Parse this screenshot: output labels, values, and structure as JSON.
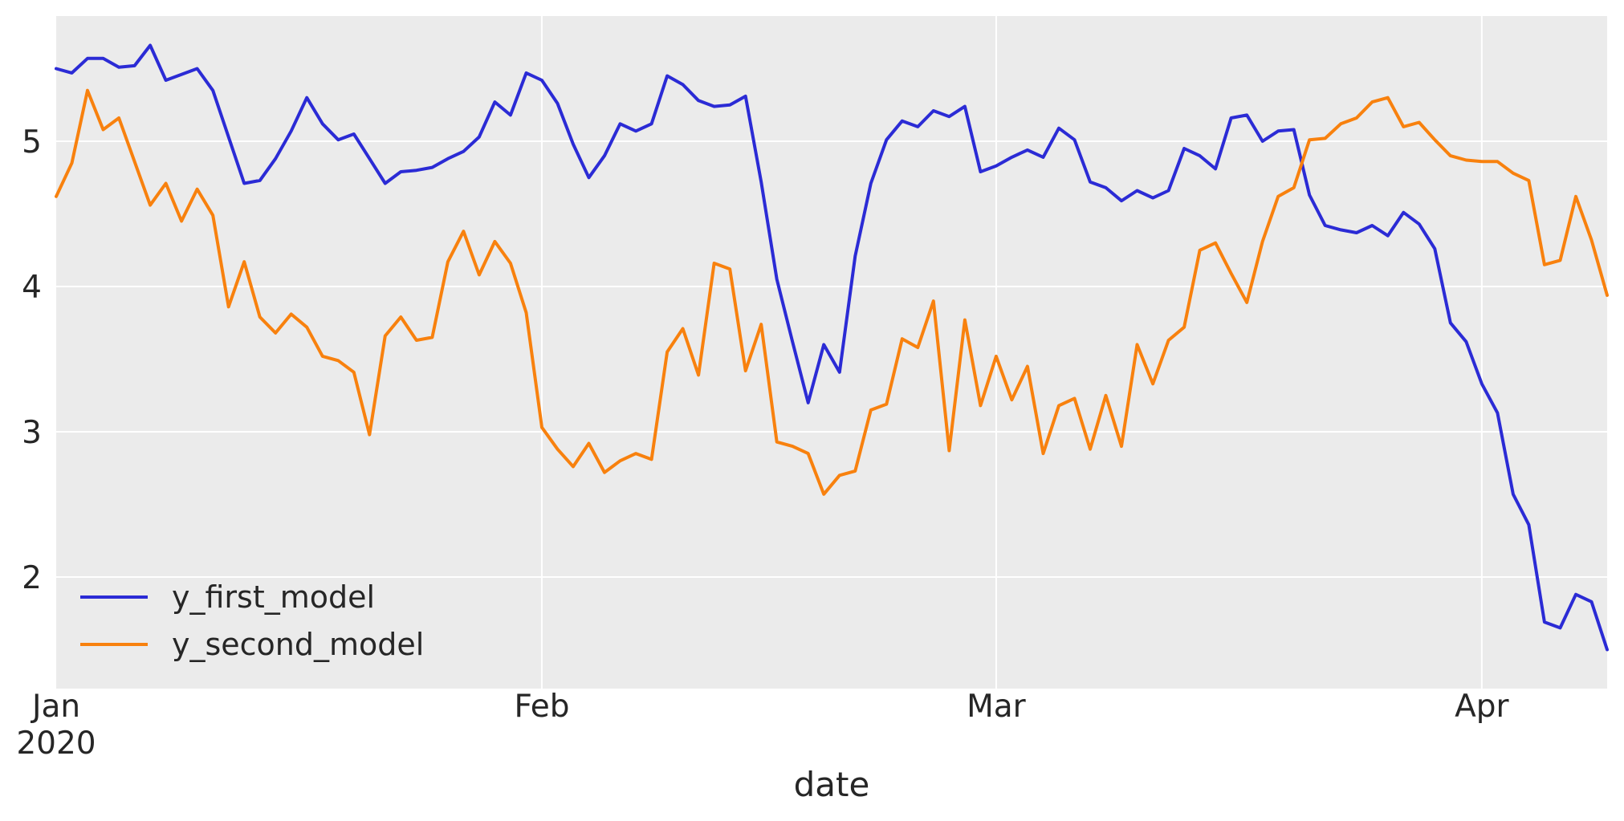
{
  "chart_data": {
    "type": "line",
    "title": "",
    "xlabel": "date",
    "ylabel": "",
    "grid": true,
    "legend_position": "lower left",
    "ylim": [
      1.23,
      5.86
    ],
    "xlim": [
      "2020-01-01",
      "2020-04-09"
    ],
    "y_ticks": [
      2,
      3,
      4,
      5
    ],
    "x_ticks": [
      {
        "index": 0,
        "label": "Jan",
        "sublabel": "2020"
      },
      {
        "index": 31,
        "label": "Feb",
        "sublabel": ""
      },
      {
        "index": 60,
        "label": "Mar",
        "sublabel": ""
      },
      {
        "index": 91,
        "label": "Apr",
        "sublabel": ""
      }
    ],
    "colors": {
      "first_model": "#2b2bd5",
      "second_model": "#f8810e",
      "plot_background": "#ebebeb",
      "figure_background": "#ffffff",
      "gridline": "#ffffff",
      "text": "#262626"
    },
    "x": [
      "2020-01-01",
      "2020-01-02",
      "2020-01-03",
      "2020-01-04",
      "2020-01-05",
      "2020-01-06",
      "2020-01-07",
      "2020-01-08",
      "2020-01-09",
      "2020-01-10",
      "2020-01-11",
      "2020-01-12",
      "2020-01-13",
      "2020-01-14",
      "2020-01-15",
      "2020-01-16",
      "2020-01-17",
      "2020-01-18",
      "2020-01-19",
      "2020-01-20",
      "2020-01-21",
      "2020-01-22",
      "2020-01-23",
      "2020-01-24",
      "2020-01-25",
      "2020-01-26",
      "2020-01-27",
      "2020-01-28",
      "2020-01-29",
      "2020-01-30",
      "2020-01-31",
      "2020-02-01",
      "2020-02-02",
      "2020-02-03",
      "2020-02-04",
      "2020-02-05",
      "2020-02-06",
      "2020-02-07",
      "2020-02-08",
      "2020-02-09",
      "2020-02-10",
      "2020-02-11",
      "2020-02-12",
      "2020-02-13",
      "2020-02-14",
      "2020-02-15",
      "2020-02-16",
      "2020-02-17",
      "2020-02-18",
      "2020-02-19",
      "2020-02-20",
      "2020-02-21",
      "2020-02-22",
      "2020-02-23",
      "2020-02-24",
      "2020-02-25",
      "2020-02-26",
      "2020-02-27",
      "2020-02-28",
      "2020-02-29",
      "2020-03-01",
      "2020-03-02",
      "2020-03-03",
      "2020-03-04",
      "2020-03-05",
      "2020-03-06",
      "2020-03-07",
      "2020-03-08",
      "2020-03-09",
      "2020-03-10",
      "2020-03-11",
      "2020-03-12",
      "2020-03-13",
      "2020-03-14",
      "2020-03-15",
      "2020-03-16",
      "2020-03-17",
      "2020-03-18",
      "2020-03-19",
      "2020-03-20",
      "2020-03-21",
      "2020-03-22",
      "2020-03-23",
      "2020-03-24",
      "2020-03-25",
      "2020-03-26",
      "2020-03-27",
      "2020-03-28",
      "2020-03-29",
      "2020-03-30",
      "2020-03-31",
      "2020-04-01",
      "2020-04-02",
      "2020-04-03",
      "2020-04-04",
      "2020-04-05",
      "2020-04-06",
      "2020-04-07",
      "2020-04-08",
      "2020-04-09"
    ],
    "series": [
      {
        "name": "y_first_model",
        "color": "#2b2bd5",
        "values": [
          5.5,
          5.47,
          5.57,
          5.57,
          5.51,
          5.52,
          5.66,
          5.42,
          5.46,
          5.5,
          5.35,
          5.03,
          4.71,
          4.73,
          4.88,
          5.07,
          5.3,
          5.12,
          5.01,
          5.05,
          4.88,
          4.71,
          4.79,
          4.8,
          4.82,
          4.88,
          4.93,
          5.03,
          5.27,
          5.18,
          5.47,
          5.42,
          5.26,
          4.98,
          4.75,
          4.9,
          5.12,
          5.07,
          5.12,
          5.45,
          5.39,
          5.28,
          5.24,
          5.25,
          5.31,
          4.72,
          4.05,
          3.62,
          3.2,
          3.6,
          3.41,
          4.21,
          4.71,
          5.01,
          5.14,
          5.1,
          5.21,
          5.17,
          5.24,
          4.79,
          4.83,
          4.89,
          4.94,
          4.89,
          5.09,
          5.01,
          4.72,
          4.68,
          4.59,
          4.66,
          4.61,
          4.66,
          4.95,
          4.9,
          4.81,
          5.16,
          5.18,
          5.0,
          5.07,
          5.08,
          4.63,
          4.42,
          4.39,
          4.37,
          4.42,
          4.35,
          4.51,
          4.43,
          4.26,
          3.75,
          3.62,
          3.33,
          3.13,
          2.57,
          2.36,
          1.69,
          1.65,
          1.88,
          1.83,
          1.5
        ]
      },
      {
        "name": "y_second_model",
        "color": "#f8810e",
        "values": [
          4.62,
          4.85,
          5.35,
          5.08,
          5.16,
          4.86,
          4.56,
          4.71,
          4.45,
          4.67,
          4.49,
          3.86,
          4.17,
          3.79,
          3.68,
          3.81,
          3.72,
          3.52,
          3.49,
          3.41,
          2.98,
          3.66,
          3.79,
          3.63,
          3.65,
          4.17,
          4.38,
          4.08,
          4.31,
          4.16,
          3.82,
          3.03,
          2.88,
          2.76,
          2.92,
          2.72,
          2.8,
          2.85,
          2.81,
          3.55,
          3.71,
          3.39,
          4.16,
          4.12,
          3.42,
          3.74,
          2.93,
          2.9,
          2.85,
          2.57,
          2.7,
          2.73,
          3.15,
          3.19,
          3.64,
          3.58,
          3.9,
          2.87,
          3.77,
          3.18,
          3.52,
          3.22,
          3.45,
          2.85,
          3.18,
          3.23,
          2.88,
          3.25,
          2.9,
          3.6,
          3.33,
          3.63,
          3.72,
          4.25,
          4.3,
          4.09,
          3.89,
          4.31,
          4.62,
          4.68,
          5.01,
          5.02,
          5.12,
          5.16,
          5.27,
          5.3,
          5.1,
          5.13,
          5.01,
          4.9,
          4.87,
          4.86,
          4.86,
          4.78,
          4.73,
          4.15,
          4.18,
          4.62,
          4.32,
          3.94
        ]
      }
    ]
  }
}
